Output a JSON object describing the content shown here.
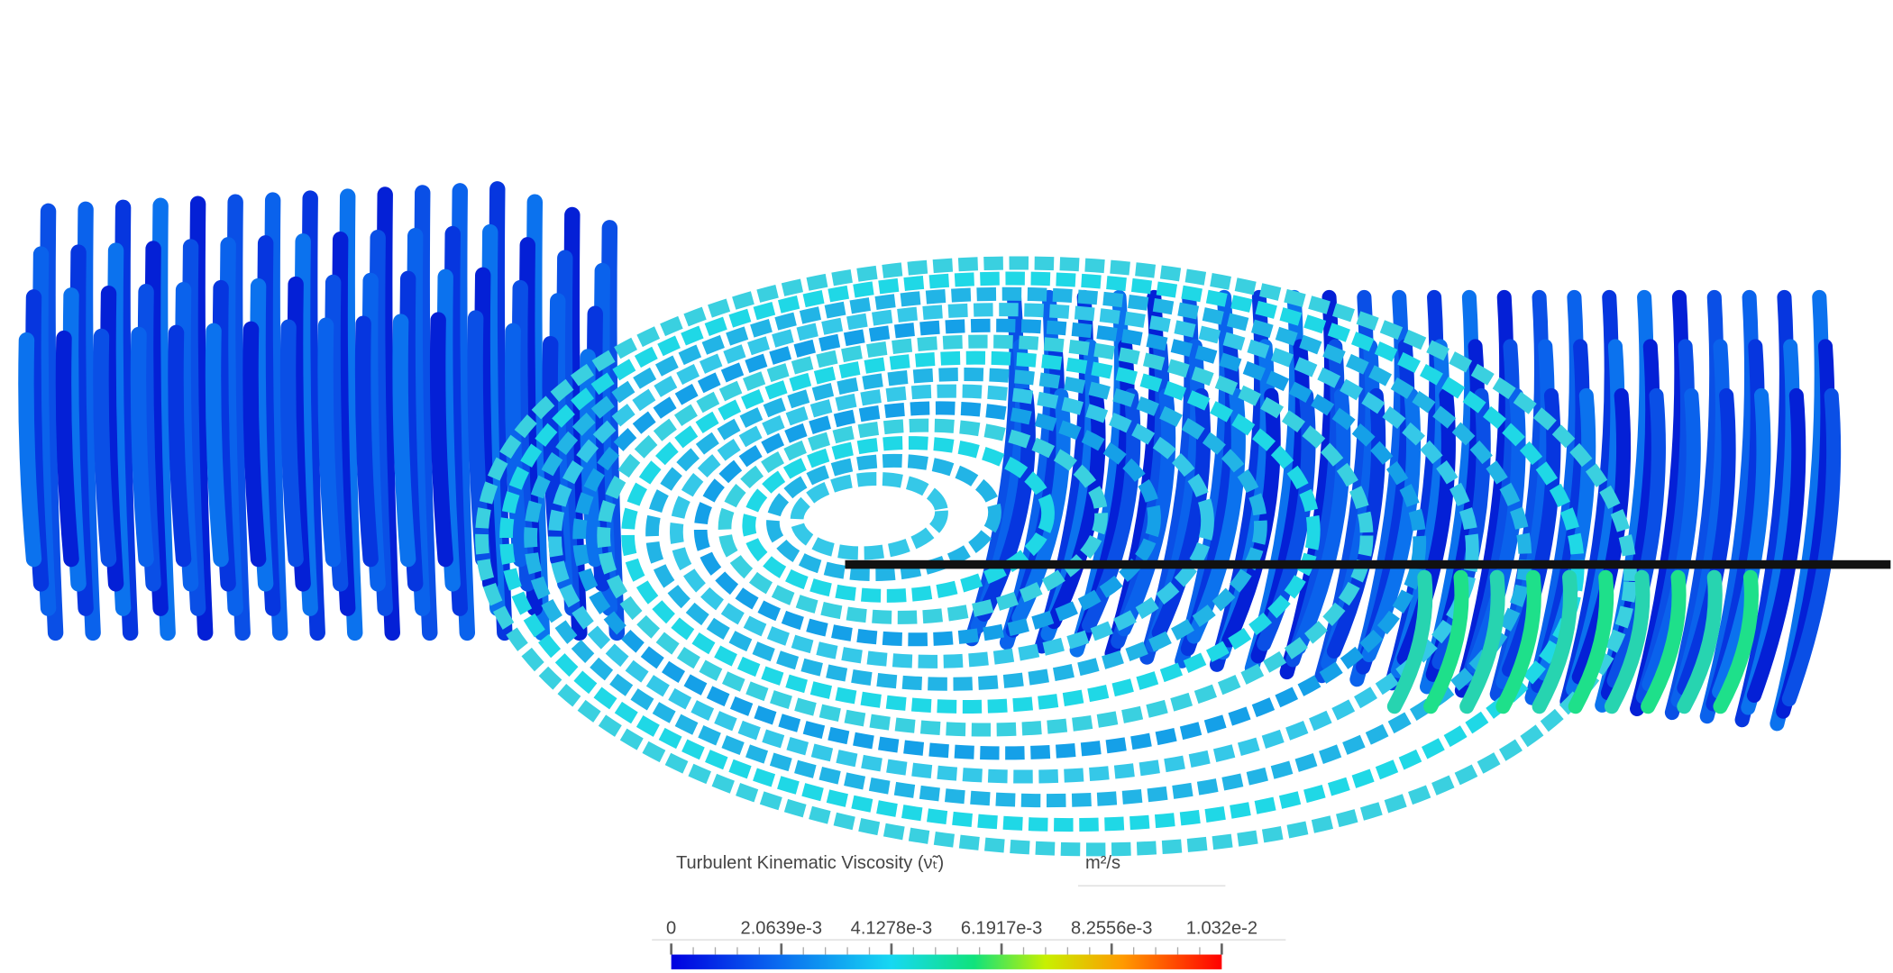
{
  "legend": {
    "title": "Turbulent Kinematic Viscosity (ν̃ₜ)",
    "unit": "m²/s",
    "range": [
      0,
      0.01032
    ],
    "ticks": [
      0,
      {
        "value": 0.0020639,
        "label": "2.0639e-3"
      },
      {
        "value": 0.0041278,
        "label": "4.1278e-3"
      },
      {
        "value": 0.0061917,
        "label": "6.1917e-3"
      },
      {
        "value": 0.0082556,
        "label": "8.2556e-3"
      },
      {
        "value": 0.01032,
        "label": "1.032e-2"
      }
    ]
  }
}
